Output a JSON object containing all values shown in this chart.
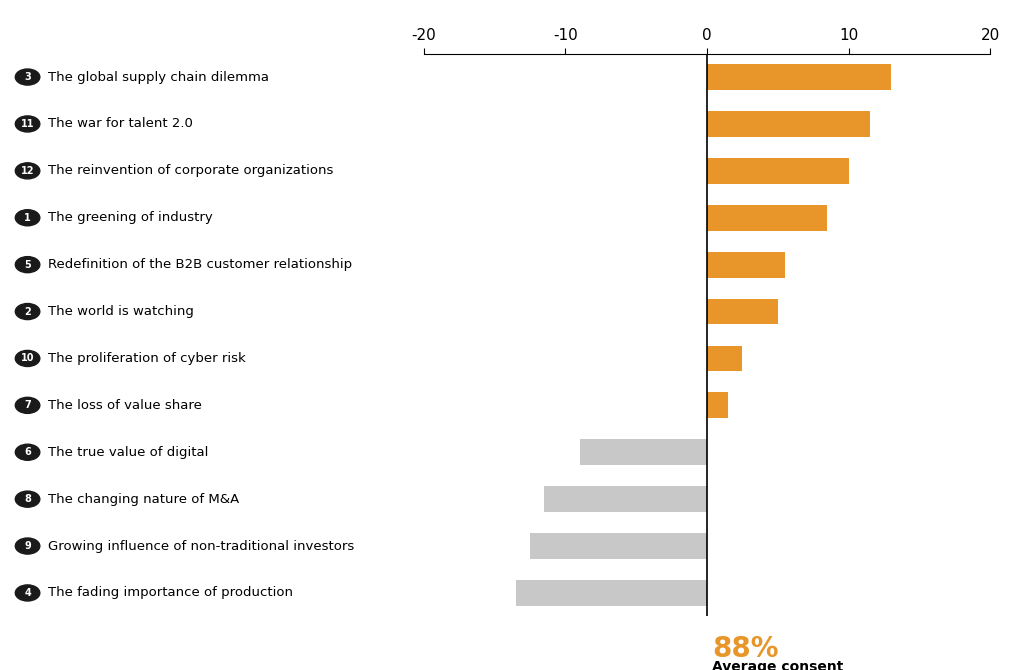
{
  "categories": [
    "The fading importance of production",
    "Growing influence of non-traditional investors",
    "The changing nature of M&A",
    "The true value of digital",
    "The loss of value share",
    "The proliferation of cyber risk",
    "The world is watching",
    "Redefinition of the B2B customer relationship",
    "The greening of industry",
    "The reinvention of corporate organizations",
    "The war for talent 2.0",
    "The global supply chain dilemma"
  ],
  "numbers": [
    "4",
    "9",
    "8",
    "6",
    "7",
    "10",
    "2",
    "5",
    "1",
    "12",
    "11",
    "3"
  ],
  "values": [
    -13.5,
    -12.5,
    -11.5,
    -9.0,
    1.5,
    2.5,
    5.0,
    5.5,
    8.5,
    10.0,
    11.5,
    13.0
  ],
  "color_positive": "#E8952A",
  "color_negative": "#C8C8C8",
  "circle_bg": "#1A1A1A",
  "circle_fg": "#FFFFFF",
  "xlim_left": -20,
  "xlim_right": 20,
  "xticks": [
    -20,
    -10,
    0,
    10,
    20
  ],
  "annotation_pct": "88%",
  "annotation_label": "Average consent",
  "annotation_color": "#E8952A",
  "bar_height": 0.55,
  "bg_color": "#FFFFFF"
}
